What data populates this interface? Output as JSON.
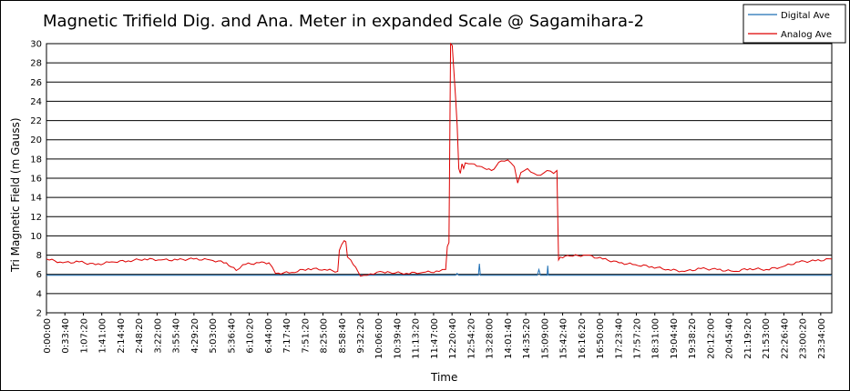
{
  "chart_data": {
    "type": "line",
    "title": "Magnetic Trifield Dig. and Ana. Meter in expanded Scale  @ Sagamihara-2",
    "xlabel": "Time",
    "ylabel": "Tri Magnetic Field (m Gauss)",
    "ylim": [
      2,
      30
    ],
    "yticks": [
      "2",
      "4",
      "6",
      "8",
      "10",
      "12",
      "14",
      "16",
      "18",
      "20",
      "22",
      "24",
      "26",
      "28",
      "30"
    ],
    "xticks": [
      "0:00:00",
      "0:33:40",
      "1:07:20",
      "1:41:00",
      "2:14:40",
      "2:48:20",
      "3:22:00",
      "3:55:40",
      "4:29:20",
      "5:03:00",
      "5:36:40",
      "6:10:20",
      "6:44:00",
      "7:17:40",
      "7:51:20",
      "8:25:00",
      "8:58:40",
      "9:32:20",
      "10:06:00",
      "10:39:40",
      "11:13:20",
      "11:47:00",
      "12:20:40",
      "12:54:20",
      "13:28:00",
      "14:01:40",
      "14:35:20",
      "15:09:00",
      "15:42:40",
      "16:16:20",
      "16:50:00",
      "17:23:40",
      "17:57:20",
      "18:31:00",
      "19:04:40",
      "19:38:20",
      "20:12:00",
      "20:45:40",
      "21:19:20",
      "21:53:00",
      "22:26:40",
      "23:00:20",
      "23:34:00"
    ],
    "grid": true,
    "legend_position": "top-right",
    "series": [
      {
        "name": "Digital Ave",
        "color": "#1f6fb4",
        "x": [
          0,
          1,
          12.5,
          12.55,
          12.6,
          13.2,
          13.23,
          13.26,
          15,
          15.05,
          15.1,
          15.3,
          15.32,
          15.34,
          24
        ],
        "y": [
          5.9,
          5.9,
          5.9,
          6.1,
          5.9,
          5.9,
          7.1,
          5.9,
          5.9,
          6.5,
          5.9,
          5.9,
          6.9,
          5.9,
          5.9
        ]
      },
      {
        "name": "Analog Ave",
        "color": "#dd0000",
        "x": [
          0,
          0.5,
          1,
          1.5,
          2,
          2.5,
          3,
          3.5,
          4,
          4.5,
          5,
          5.5,
          5.8,
          6,
          6.5,
          6.8,
          7,
          7.5,
          8,
          8.5,
          8.9,
          8.95,
          9.1,
          9.15,
          9.2,
          9.3,
          9.6,
          9.8,
          10,
          10.2,
          10.5,
          11,
          11.5,
          12,
          12.2,
          12.25,
          12.3,
          12.35,
          12.4,
          12.5,
          12.55,
          12.6,
          12.65,
          12.7,
          12.75,
          12.8,
          12.9,
          13,
          13.3,
          13.6,
          13.9,
          14.1,
          14.3,
          14.4,
          14.5,
          14.7,
          14.9,
          15.1,
          15.3,
          15.5,
          15.6,
          15.65,
          15.7,
          16,
          16.5,
          17,
          17.5,
          18,
          18.5,
          19,
          19.5,
          20,
          20.5,
          21,
          21.5,
          22,
          22.5,
          23,
          23.5,
          24
        ],
        "y": [
          7.6,
          7.2,
          7.3,
          7.0,
          7.3,
          7.4,
          7.6,
          7.5,
          7.5,
          7.6,
          7.5,
          7.2,
          6.4,
          7.0,
          7.2,
          7.2,
          6.1,
          6.2,
          6.6,
          6.5,
          6.3,
          8.5,
          9.5,
          9.4,
          7.8,
          7.5,
          5.8,
          5.9,
          6.0,
          6.3,
          6.2,
          6.1,
          6.2,
          6.3,
          6.5,
          8.9,
          9.3,
          30.5,
          29.8,
          24.5,
          21.5,
          17.0,
          16.5,
          17.5,
          17.0,
          17.6,
          17.5,
          17.5,
          17.2,
          16.8,
          17.8,
          17.9,
          17.2,
          15.5,
          16.6,
          17.0,
          16.5,
          16.3,
          16.8,
          16.5,
          16.8,
          7.5,
          7.8,
          7.9,
          8.0,
          7.6,
          7.2,
          7.0,
          6.8,
          6.5,
          6.3,
          6.6,
          6.5,
          6.3,
          6.6,
          6.5,
          6.8,
          7.3,
          7.4,
          7.6
        ]
      }
    ]
  }
}
